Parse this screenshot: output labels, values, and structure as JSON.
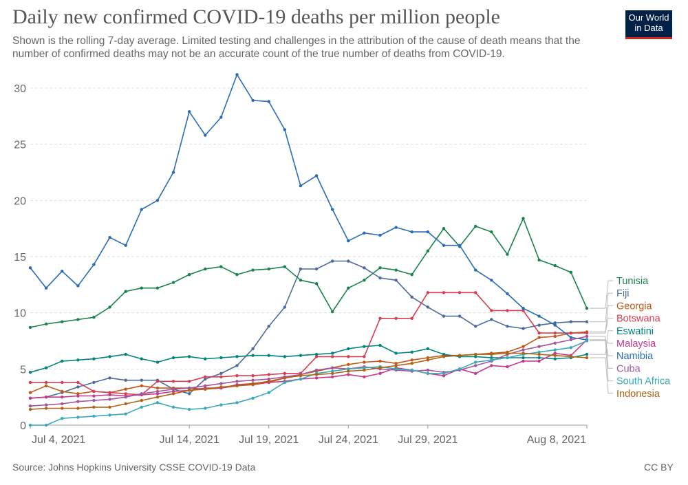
{
  "title": "Daily new confirmed COVID-19 deaths per million people",
  "subtitle": "Shown is the rolling 7-day average. Limited testing and challenges in the attribution of the cause of death means that the number of confirmed deaths may not be an accurate count of the true number of deaths from COVID-19.",
  "logo": {
    "line1": "Our World",
    "line2": "in Data",
    "bg": "#002147",
    "accent": "#ce261e"
  },
  "source": "Source: Johns Hopkins University CSSE COVID-19 Data",
  "license": "CC BY",
  "chart_data": {
    "type": "line",
    "title": "Daily new confirmed COVID-19 deaths per million people",
    "xlabel": "",
    "ylabel": "",
    "ylim": [
      0,
      30
    ],
    "yticks": [
      0,
      5,
      10,
      15,
      20,
      25,
      30
    ],
    "grid": true,
    "legend_position": "right",
    "x": [
      "2021-07-04",
      "2021-07-05",
      "2021-07-06",
      "2021-07-07",
      "2021-07-08",
      "2021-07-09",
      "2021-07-10",
      "2021-07-11",
      "2021-07-12",
      "2021-07-13",
      "2021-07-14",
      "2021-07-15",
      "2021-07-16",
      "2021-07-17",
      "2021-07-18",
      "2021-07-19",
      "2021-07-20",
      "2021-07-21",
      "2021-07-22",
      "2021-07-23",
      "2021-07-24",
      "2021-07-25",
      "2021-07-26",
      "2021-07-27",
      "2021-07-28",
      "2021-07-29",
      "2021-07-30",
      "2021-07-31",
      "2021-08-01",
      "2021-08-02",
      "2021-08-03",
      "2021-08-04",
      "2021-08-05",
      "2021-08-06",
      "2021-08-07",
      "2021-08-08"
    ],
    "xticks": [
      {
        "label": "Jul 4, 2021",
        "index": 0
      },
      {
        "label": "Jul 14, 2021",
        "index": 10
      },
      {
        "label": "Jul 19, 2021",
        "index": 15
      },
      {
        "label": "Jul 24, 2021",
        "index": 20
      },
      {
        "label": "Jul 29, 2021",
        "index": 25
      },
      {
        "label": "Aug 8, 2021",
        "index": 35
      }
    ],
    "series": [
      {
        "name": "Tunisia",
        "color": "#18834a",
        "values": [
          8.7,
          9.0,
          9.2,
          9.4,
          9.6,
          10.5,
          11.9,
          12.2,
          12.2,
          12.7,
          13.4,
          13.9,
          14.1,
          13.4,
          13.8,
          13.9,
          14.1,
          12.9,
          12.6,
          10.1,
          12.2,
          12.9,
          14.0,
          13.8,
          13.4,
          15.5,
          17.5,
          15.9,
          17.7,
          17.2,
          15.2,
          18.4,
          14.7,
          14.2,
          13.6,
          10.4
        ]
      },
      {
        "name": "Fiji",
        "color": "#4c6a9c",
        "values": [
          2.4,
          2.5,
          2.9,
          3.4,
          3.8,
          4.2,
          4.0,
          4.0,
          4.0,
          3.2,
          2.8,
          4.1,
          4.6,
          5.3,
          6.8,
          8.8,
          10.5,
          13.9,
          13.9,
          14.6,
          14.6,
          14.0,
          13.1,
          12.9,
          11.4,
          10.5,
          9.7,
          9.7,
          8.8,
          9.4,
          8.8,
          8.6,
          8.9,
          9.1,
          9.2,
          9.2
        ]
      },
      {
        "name": "Georgia",
        "color": "#c05917",
        "values": [
          2.9,
          3.5,
          3.0,
          2.8,
          3.0,
          2.9,
          3.2,
          3.5,
          3.3,
          3.3,
          3.3,
          3.2,
          3.3,
          3.5,
          3.6,
          3.8,
          4.2,
          4.5,
          4.8,
          5.1,
          5.4,
          5.6,
          5.7,
          5.5,
          5.8,
          6.0,
          6.2,
          6.2,
          6.3,
          6.4,
          6.5,
          7.0,
          7.8,
          7.9,
          8.2,
          8.3
        ]
      },
      {
        "name": "Botswana",
        "color": "#d73c50",
        "values": [
          3.8,
          3.8,
          3.8,
          3.8,
          3.0,
          2.9,
          2.8,
          2.7,
          3.9,
          3.9,
          3.9,
          4.3,
          4.3,
          4.4,
          4.4,
          4.5,
          4.6,
          4.6,
          6.1,
          6.1,
          6.1,
          6.1,
          9.5,
          9.5,
          9.5,
          11.8,
          11.8,
          11.8,
          11.8,
          10.2,
          10.2,
          10.2,
          8.2,
          8.2,
          8.2,
          8.2
        ]
      },
      {
        "name": "Eswatini",
        "color": "#00847e",
        "values": [
          4.7,
          5.1,
          5.7,
          5.8,
          5.9,
          6.1,
          6.3,
          5.9,
          5.6,
          6.0,
          6.1,
          5.9,
          6.0,
          6.1,
          6.2,
          6.2,
          6.1,
          6.2,
          6.3,
          6.4,
          6.8,
          7.0,
          7.1,
          6.4,
          6.5,
          6.8,
          6.3,
          6.1,
          6.1,
          6.0,
          6.0,
          6.0,
          6.0,
          5.9,
          6.0,
          6.3
        ]
      },
      {
        "name": "Malaysia",
        "color": "#c7388b",
        "values": [
          2.4,
          2.5,
          2.5,
          2.6,
          2.6,
          2.7,
          2.6,
          2.7,
          2.8,
          3.0,
          3.1,
          3.3,
          3.3,
          3.6,
          3.7,
          3.8,
          3.9,
          4.1,
          4.2,
          4.3,
          4.5,
          4.3,
          4.6,
          5.1,
          4.9,
          4.6,
          4.4,
          5.0,
          4.6,
          5.3,
          5.2,
          5.7,
          5.7,
          6.4,
          6.2,
          7.6
        ]
      },
      {
        "name": "Namibia",
        "color": "#286bbb",
        "values": [
          14.0,
          12.2,
          13.7,
          12.4,
          14.3,
          16.7,
          16.0,
          19.2,
          20.0,
          22.5,
          27.9,
          25.8,
          27.4,
          31.2,
          28.9,
          28.8,
          26.3,
          21.3,
          22.2,
          19.2,
          16.4,
          17.1,
          16.9,
          17.6,
          17.2,
          17.2,
          16.0,
          16.0,
          13.8,
          12.9,
          11.7,
          10.4,
          9.7,
          8.9,
          7.8,
          7.6
        ]
      },
      {
        "name": "Cuba",
        "color": "#a2559c",
        "values": [
          1.7,
          1.8,
          1.9,
          2.1,
          2.2,
          2.3,
          2.5,
          2.8,
          3.0,
          3.2,
          3.3,
          3.5,
          3.7,
          3.9,
          4.0,
          4.1,
          4.3,
          4.5,
          4.9,
          5.1,
          5.0,
          5.2,
          5.0,
          4.9,
          4.8,
          4.9,
          4.7,
          4.9,
          5.3,
          5.7,
          6.3,
          6.7,
          7.0,
          7.3,
          7.6,
          7.9
        ]
      },
      {
        "name": "South Africa",
        "color": "#38aaba",
        "values": [
          0.0,
          0.0,
          0.6,
          0.7,
          0.8,
          0.9,
          1.0,
          1.6,
          2.0,
          1.6,
          1.4,
          1.5,
          1.8,
          2.0,
          2.4,
          2.9,
          3.8,
          4.1,
          4.6,
          4.8,
          5.0,
          5.1,
          5.2,
          5.0,
          4.9,
          4.6,
          4.6,
          5.0,
          5.6,
          5.8,
          6.0,
          6.3,
          6.5,
          6.7,
          6.9,
          7.5
        ]
      },
      {
        "name": "Indonesia",
        "color": "#b16214",
        "values": [
          1.4,
          1.5,
          1.5,
          1.5,
          1.6,
          1.6,
          1.9,
          2.2,
          2.5,
          2.8,
          3.1,
          3.2,
          3.4,
          3.5,
          3.7,
          3.9,
          4.2,
          4.4,
          4.5,
          4.6,
          4.8,
          4.9,
          5.1,
          5.3,
          5.5,
          5.8,
          6.1,
          6.2,
          6.3,
          6.3,
          6.4,
          6.4,
          6.3,
          6.2,
          6.1,
          6.0
        ]
      }
    ]
  }
}
